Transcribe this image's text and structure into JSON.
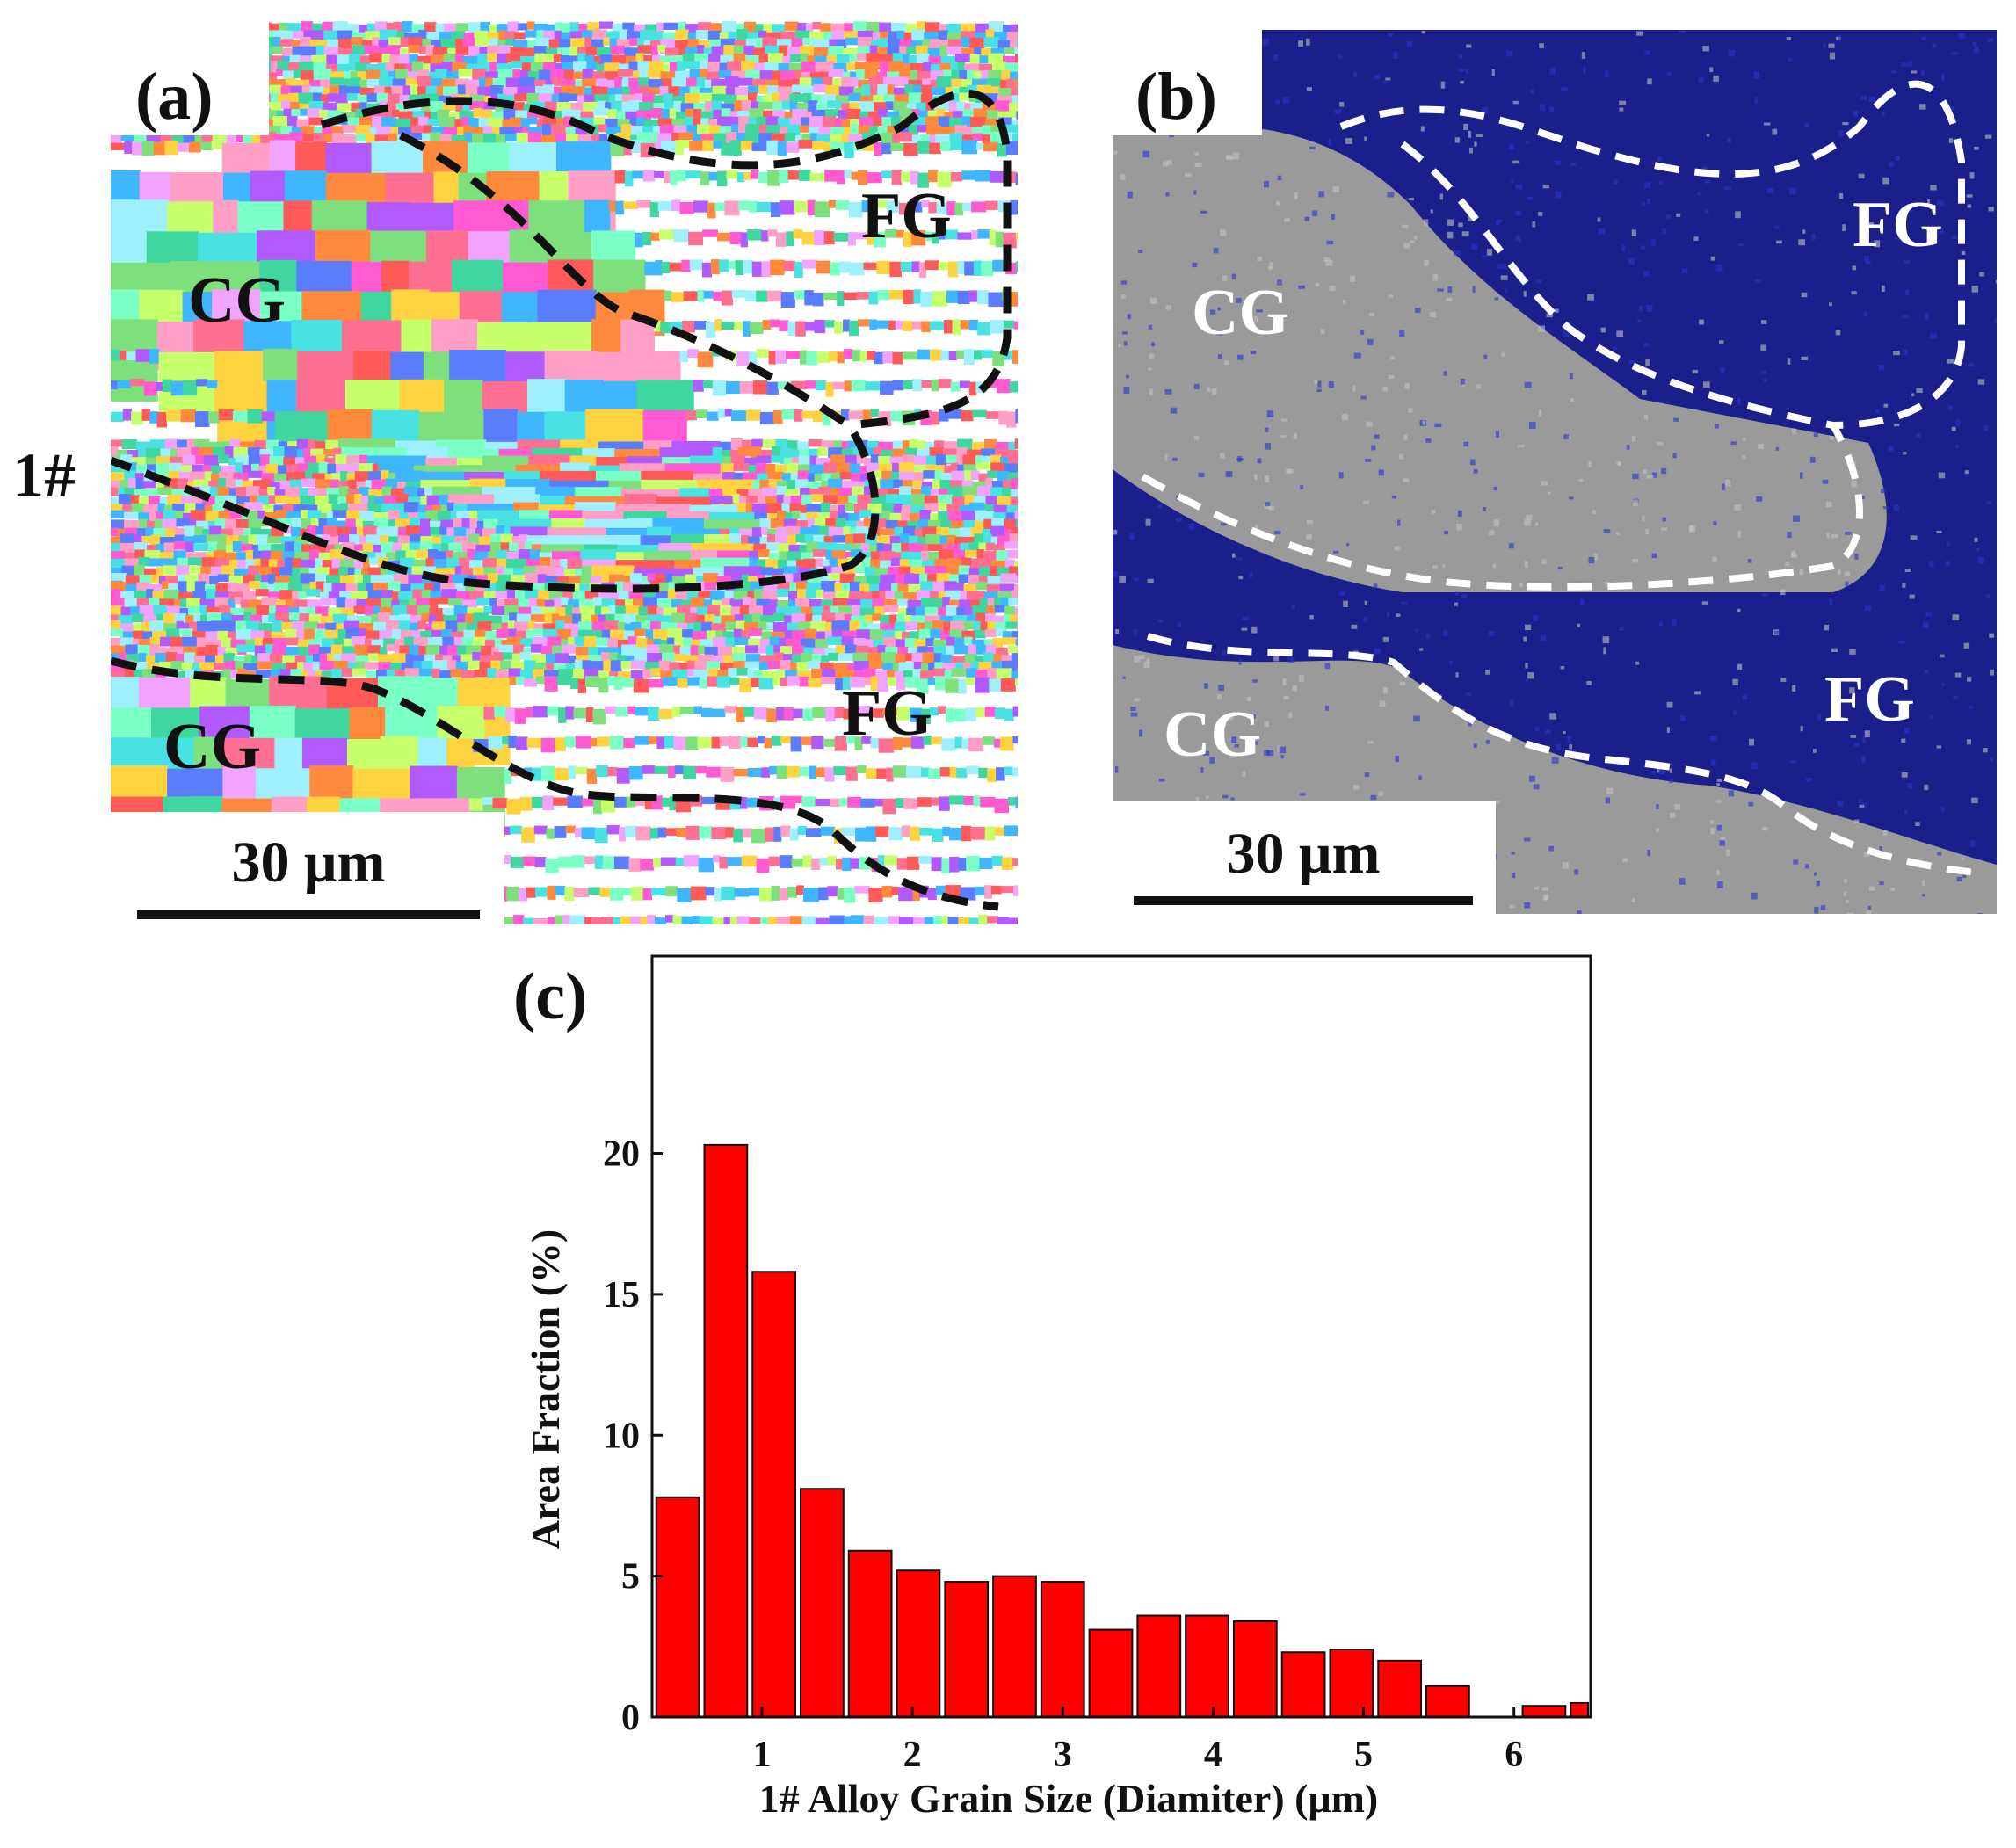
{
  "panels": {
    "a": {
      "letter": "(a)",
      "regions": [
        "CG",
        "FG",
        "CG",
        "FG"
      ],
      "scalebar": "30 μm"
    },
    "b": {
      "letter": "(b)",
      "regions": [
        "CG",
        "FG",
        "CG",
        "FG"
      ],
      "scalebar": "30 μm"
    },
    "c": {
      "letter": "(c)"
    }
  },
  "row_label": "1#",
  "colors": {
    "bar": "#ff0000",
    "panel_a_boundary": "#111111",
    "panel_b_boundary": "#ffffff",
    "panel_b_fine_grain": "#1a1f8c"
  },
  "chart_data": {
    "type": "bar",
    "title": "",
    "xlabel": "1# Alloy Grain Size (Diamiter) (μm)",
    "ylabel": "Area Fraction (%)",
    "xlim": [
      0.27,
      6.51
    ],
    "ylim": [
      0,
      27
    ],
    "xticks": [
      1,
      2,
      3,
      4,
      5,
      6
    ],
    "yticks": [
      0,
      5,
      10,
      15,
      20
    ],
    "bin_width": 0.32,
    "x": [
      0.44,
      0.76,
      1.08,
      1.4,
      1.72,
      2.04,
      2.36,
      2.68,
      3.0,
      3.32,
      3.64,
      3.96,
      4.28,
      4.6,
      4.92,
      5.24,
      5.56,
      5.88,
      6.2,
      6.52
    ],
    "values": [
      7.8,
      20.3,
      15.8,
      8.1,
      5.9,
      5.2,
      4.8,
      5.0,
      4.8,
      3.1,
      3.6,
      3.6,
      3.4,
      2.3,
      2.4,
      2.0,
      1.1,
      0.0,
      0.4,
      0.5
    ],
    "grid": false,
    "legend": "none"
  }
}
